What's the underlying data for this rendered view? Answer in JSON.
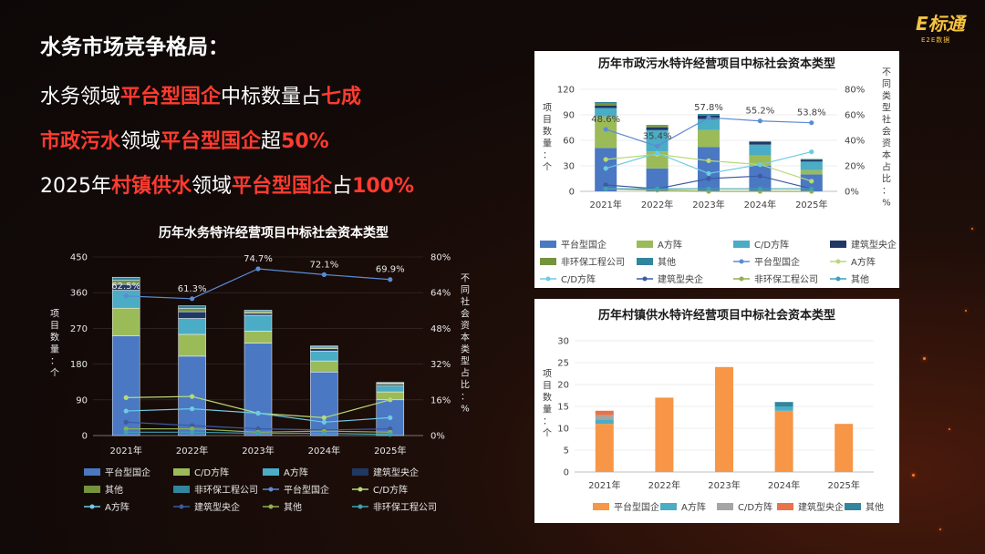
{
  "headline": {
    "title": "水务市场竞争格局：",
    "line1": {
      "a": "水务领域",
      "b": "平台型国企",
      "c": "中标数量占",
      "d": "七成"
    },
    "line2": {
      "a": "市政污水",
      "b": "领域",
      "c": "平台型国企",
      "d": "超",
      "e": "50%"
    },
    "line3": {
      "a": "2025年",
      "b": "村镇供水",
      "c": "领域",
      "d": "平台型国企",
      "e": "占",
      "f": "100%"
    }
  },
  "logo": {
    "mark": "E标通",
    "sub": "E2E数据"
  },
  "colors": {
    "platform": "#4a78c2",
    "cd": "#9bbb59",
    "a": "#4bacc6",
    "central": "#1f3864",
    "other": "#76923c",
    "nonenv": "#31859c",
    "orange": "#f79646",
    "teal": "#4bacc6",
    "gray": "#a5a5a5"
  },
  "chart_data": [
    {
      "id": "water",
      "type": "bar",
      "title": "历年水务特许经营项目中标社会资本类型",
      "ylabel": "项目数量：个",
      "y2label": "不同社会资本类型占比：%",
      "categories": [
        "2021年",
        "2022年",
        "2023年",
        "2024年",
        "2025年"
      ],
      "ylim": [
        0,
        450
      ],
      "yticks": [
        "0",
        "90",
        "180",
        "270",
        "360",
        "450"
      ],
      "y2lim": [
        0,
        80
      ],
      "y2ticks": [
        "0%",
        "16%",
        "32%",
        "48%",
        "64%",
        "80%"
      ],
      "series": [
        {
          "name": "平台型国企",
          "kind": "bar",
          "color": "#4a78c2",
          "values": [
            251,
            200,
            233,
            160,
            90
          ]
        },
        {
          "name": "C/D方阵",
          "kind": "bar",
          "color": "#9bbb59",
          "values": [
            70,
            55,
            30,
            28,
            20
          ]
        },
        {
          "name": "A方阵",
          "kind": "bar",
          "color": "#4bacc6",
          "values": [
            45,
            40,
            40,
            25,
            15
          ]
        },
        {
          "name": "建筑型央企",
          "kind": "bar",
          "color": "#1f3864",
          "values": [
            15,
            17,
            5,
            6,
            4
          ]
        },
        {
          "name": "其他",
          "kind": "bar",
          "color": "#76923c",
          "values": [
            10,
            8,
            4,
            4,
            3
          ]
        },
        {
          "name": "非环保工程公司",
          "kind": "bar",
          "color": "#31859c",
          "values": [
            8,
            7,
            4,
            3,
            2
          ]
        },
        {
          "name": "平台型国企",
          "kind": "line",
          "color": "#5b8bd6",
          "values": [
            62.5,
            61.3,
            74.7,
            72.1,
            69.9
          ],
          "labels": [
            "62.5%",
            "61.3%",
            "74.7%",
            "72.1%",
            "69.9%"
          ]
        },
        {
          "name": "C/D方阵",
          "kind": "line",
          "color": "#b8d97a",
          "values": [
            17,
            17.5,
            10,
            8,
            16
          ]
        },
        {
          "name": "A方阵",
          "kind": "line",
          "color": "#6ccbe3",
          "values": [
            11,
            12,
            10,
            6,
            8
          ]
        },
        {
          "name": "建筑型央企",
          "kind": "line",
          "color": "#3b5ba5",
          "values": [
            6,
            4.5,
            3,
            2.5,
            3
          ]
        },
        {
          "name": "其他",
          "kind": "line",
          "color": "#8fb04e",
          "values": [
            3,
            3,
            1.5,
            2,
            1.5
          ]
        },
        {
          "name": "非环保工程公司",
          "kind": "line",
          "color": "#3fa1b5",
          "values": [
            1.5,
            1.5,
            1,
            1,
            0.5
          ]
        }
      ],
      "legend": [
        {
          "label": "平台型国企",
          "kind": "bar",
          "color": "#4a78c2"
        },
        {
          "label": "C/D方阵",
          "kind": "bar",
          "color": "#9bbb59"
        },
        {
          "label": "A方阵",
          "kind": "bar",
          "color": "#4bacc6"
        },
        {
          "label": "建筑型央企",
          "kind": "bar",
          "color": "#1f3864"
        },
        {
          "label": "其他",
          "kind": "bar",
          "color": "#76923c"
        },
        {
          "label": "非环保工程公司",
          "kind": "bar",
          "color": "#31859c"
        },
        {
          "label": "平台型国企",
          "kind": "line",
          "color": "#5b8bd6"
        },
        {
          "label": "C/D方阵",
          "kind": "line",
          "color": "#b8d97a"
        },
        {
          "label": "A方阵",
          "kind": "line",
          "color": "#6ccbe3"
        },
        {
          "label": "建筑型央企",
          "kind": "line",
          "color": "#3b5ba5"
        },
        {
          "label": "其他",
          "kind": "line",
          "color": "#8fb04e"
        },
        {
          "label": "非环保工程公司",
          "kind": "line",
          "color": "#3fa1b5"
        }
      ]
    },
    {
      "id": "sewage",
      "type": "bar",
      "title": "历年市政污水特许经营项目中标社会资本类型",
      "ylabel": "项目数量：个",
      "y2label": "不同类型社会资本占比：%",
      "categories": [
        "2021年",
        "2022年",
        "2023年",
        "2024年",
        "2025年"
      ],
      "ylim": [
        0,
        120
      ],
      "yticks": [
        "0",
        "30",
        "60",
        "90",
        "120"
      ],
      "y2lim": [
        0,
        80
      ],
      "y2ticks": [
        "0%",
        "20%",
        "40%",
        "60%",
        "80%"
      ],
      "series": [
        {
          "name": "平台型国企",
          "kind": "bar",
          "color": "#4a78c2",
          "values": [
            51,
            27,
            52,
            30,
            20
          ]
        },
        {
          "name": "A方阵",
          "kind": "bar",
          "color": "#9bbb59",
          "values": [
            37,
            20,
            20,
            12,
            5
          ]
        },
        {
          "name": "C/D方阵",
          "kind": "bar",
          "color": "#4bacc6",
          "values": [
            10,
            25,
            13,
            13,
            10
          ]
        },
        {
          "name": "建筑型央企",
          "kind": "bar",
          "color": "#1f3864",
          "values": [
            3,
            3,
            4,
            3,
            2
          ]
        },
        {
          "name": "非环保工程公司",
          "kind": "bar",
          "color": "#76923c",
          "values": [
            2,
            2,
            0,
            0,
            0
          ]
        },
        {
          "name": "其他",
          "kind": "bar",
          "color": "#31859c",
          "values": [
            2,
            1,
            2,
            1,
            1
          ]
        },
        {
          "name": "平台型国企",
          "kind": "line",
          "color": "#5b8bd6",
          "values": [
            48.6,
            35.4,
            57.8,
            55.2,
            53.8
          ],
          "labels": [
            "48.6%",
            "35.4%",
            "57.8%",
            "55.2%",
            "53.8%"
          ]
        },
        {
          "name": "A方阵",
          "kind": "line",
          "color": "#b8d97a",
          "values": [
            25,
            29,
            24,
            21,
            8
          ]
        },
        {
          "name": "C/D方阵",
          "kind": "line",
          "color": "#6ccbe3",
          "values": [
            18,
            30,
            14,
            21,
            31
          ]
        },
        {
          "name": "建筑型央企",
          "kind": "line",
          "color": "#3b5ba5",
          "values": [
            5,
            2,
            10,
            12,
            2
          ]
        },
        {
          "name": "非环保工程公司",
          "kind": "line",
          "color": "#8fb04e",
          "values": [
            2,
            1,
            0,
            0,
            0
          ]
        },
        {
          "name": "其他",
          "kind": "line",
          "color": "#3fa1b5",
          "values": [
            2,
            2,
            2,
            2,
            2
          ]
        }
      ],
      "legend": [
        {
          "label": "平台型国企",
          "kind": "bar",
          "color": "#4a78c2"
        },
        {
          "label": "A方阵",
          "kind": "bar",
          "color": "#9bbb59"
        },
        {
          "label": "C/D方阵",
          "kind": "bar",
          "color": "#4bacc6"
        },
        {
          "label": "建筑型央企",
          "kind": "bar",
          "color": "#1f3864"
        },
        {
          "label": "非环保工程公司",
          "kind": "bar",
          "color": "#76923c"
        },
        {
          "label": "其他",
          "kind": "bar",
          "color": "#31859c"
        },
        {
          "label": "平台型国企",
          "kind": "line",
          "color": "#5b8bd6"
        },
        {
          "label": "A方阵",
          "kind": "line",
          "color": "#b8d97a"
        },
        {
          "label": "C/D方阵",
          "kind": "line",
          "color": "#6ccbe3"
        },
        {
          "label": "建筑型央企",
          "kind": "line",
          "color": "#3b5ba5"
        },
        {
          "label": "非环保工程公司",
          "kind": "line",
          "color": "#8fb04e"
        },
        {
          "label": "其他",
          "kind": "line",
          "color": "#3fa1b5"
        }
      ]
    },
    {
      "id": "rural",
      "type": "bar",
      "title": "历年村镇供水特许经营项目中标社会资本类型",
      "ylabel": "项目数量：个",
      "categories": [
        "2021年",
        "2022年",
        "2023年",
        "2024年",
        "2025年"
      ],
      "ylim": [
        0,
        30
      ],
      "yticks": [
        "0",
        "5",
        "10",
        "15",
        "20",
        "25",
        "30"
      ],
      "series": [
        {
          "name": "平台型国企",
          "kind": "bar",
          "color": "#f79646",
          "values": [
            11,
            17,
            24,
            14,
            11
          ]
        },
        {
          "name": "A方阵",
          "kind": "bar",
          "color": "#4bacc6",
          "values": [
            1,
            0,
            0,
            1,
            0
          ]
        },
        {
          "name": "C/D方阵",
          "kind": "bar",
          "color": "#a5a5a5",
          "values": [
            1,
            0,
            0,
            0,
            0
          ]
        },
        {
          "name": "建筑型央企",
          "kind": "bar",
          "color": "#e8734a",
          "values": [
            1,
            0,
            0,
            0,
            0
          ]
        },
        {
          "name": "其他",
          "kind": "bar",
          "color": "#31859c",
          "values": [
            0,
            0,
            0,
            1,
            0
          ]
        }
      ],
      "legend": [
        {
          "label": "平台型国企",
          "kind": "bar",
          "color": "#f79646"
        },
        {
          "label": "A方阵",
          "kind": "bar",
          "color": "#4bacc6"
        },
        {
          "label": "C/D方阵",
          "kind": "bar",
          "color": "#a5a5a5"
        },
        {
          "label": "建筑型央企",
          "kind": "bar",
          "color": "#e8734a"
        },
        {
          "label": "其他",
          "kind": "bar",
          "color": "#31859c"
        }
      ]
    }
  ]
}
